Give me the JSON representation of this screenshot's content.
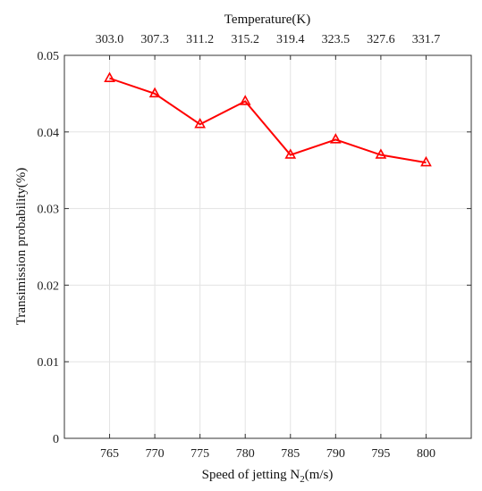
{
  "chart_data": {
    "type": "line",
    "title": "",
    "xlabel_prefix": "Speed of jetting N",
    "xlabel_sub": "2",
    "xlabel_suffix": "(m/s)",
    "x2label": "Temperature(K)",
    "ylabel": "Transimission probability(%)",
    "categories": [
      "765",
      "770",
      "775",
      "780",
      "785",
      "790",
      "795",
      "800"
    ],
    "top_categories": [
      "303.0",
      "307.3",
      "311.2",
      "315.2",
      "319.4",
      "323.5",
      "327.6",
      "331.7"
    ],
    "x": [
      765,
      770,
      775,
      780,
      785,
      790,
      795,
      800
    ],
    "xlim": [
      760,
      805
    ],
    "ylim": [
      0,
      0.05
    ],
    "yticks": [
      0,
      0.01,
      0.02,
      0.03,
      0.04,
      0.05
    ],
    "ytick_labels": [
      "0",
      "0.01",
      "0.02",
      "0.03",
      "0.04",
      "0.05"
    ],
    "series": [
      {
        "values": [
          0.047,
          0.045,
          0.041,
          0.044,
          0.037,
          0.039,
          0.037,
          0.036
        ],
        "color": "#ff0000",
        "marker": "triangle"
      }
    ],
    "grid": true
  }
}
